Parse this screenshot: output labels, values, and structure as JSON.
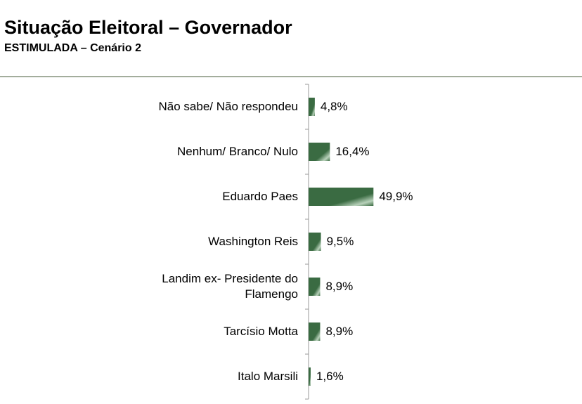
{
  "chart_data": {
    "type": "bar",
    "orientation": "horizontal",
    "title": "Situação Eleitoral – Governador",
    "subtitle": "ESTIMULADA – Cenário 2",
    "categories": [
      "Não sabe/ Não respondeu",
      "Nenhum/ Branco/ Nulo",
      "Eduardo Paes",
      "Washington Reis",
      "Landim ex- Presidente do Flamengo",
      "Tarcísio Motta",
      "Italo Marsili"
    ],
    "values": [
      4.8,
      16.4,
      49.9,
      9.5,
      8.9,
      8.9,
      1.6
    ],
    "value_labels": [
      "4,8%",
      "16,4%",
      "49,9%",
      "9,5%",
      "8,9%",
      "8,9%",
      "1,6%"
    ],
    "color": "#3a6b42"
  }
}
